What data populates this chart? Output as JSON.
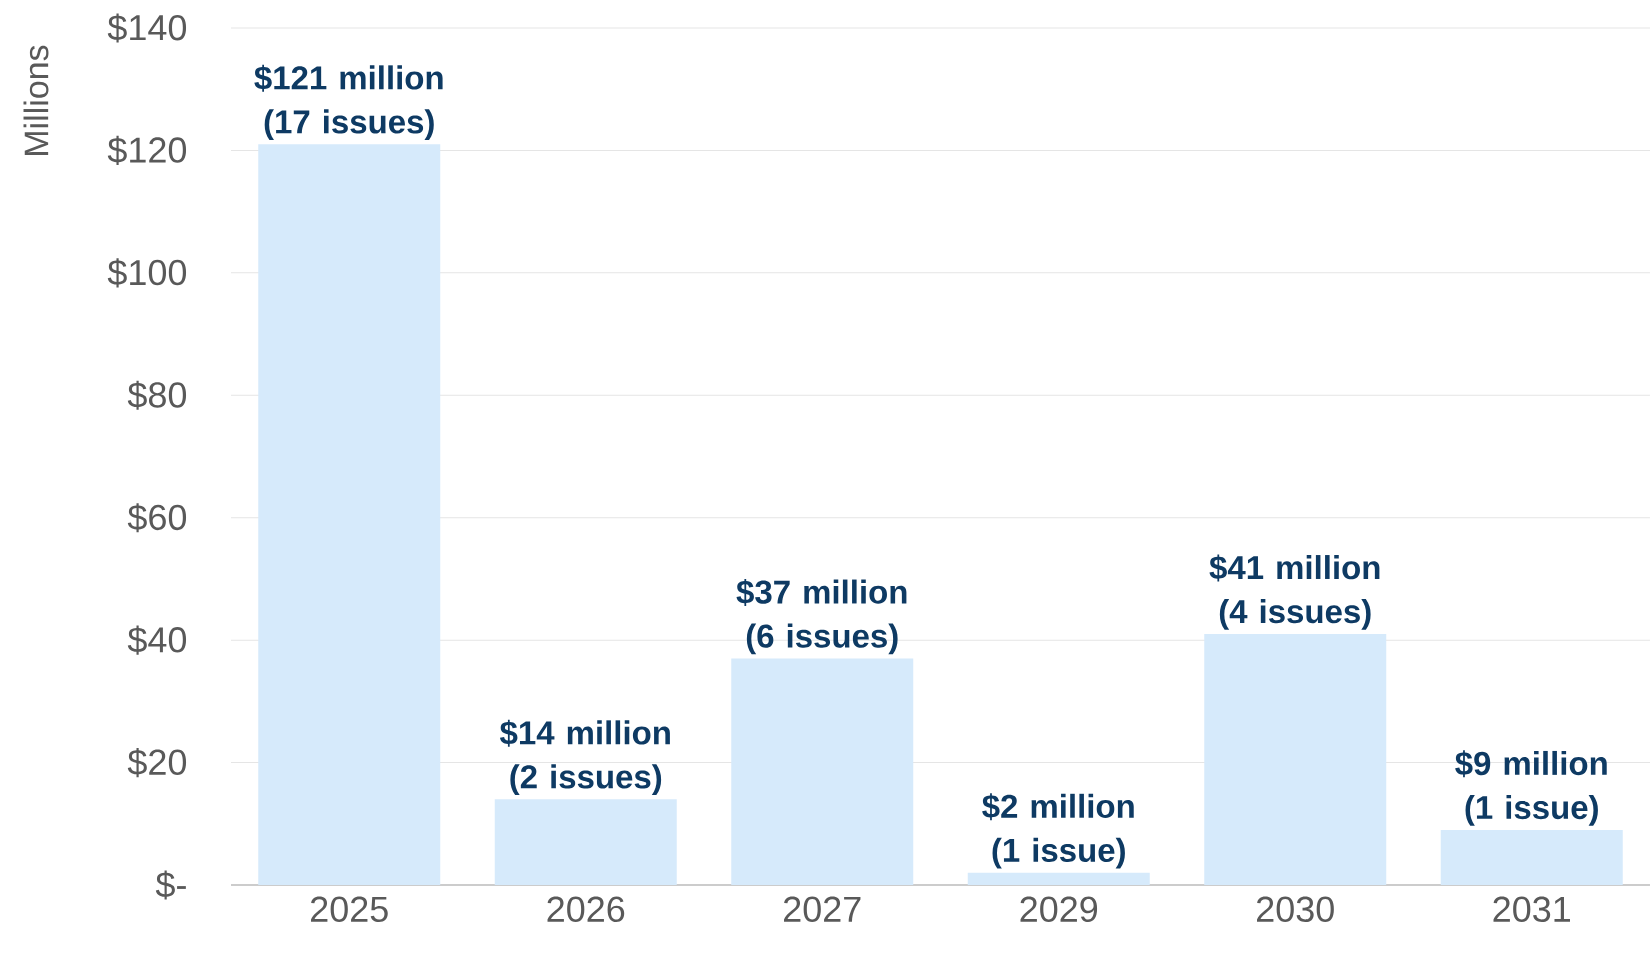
{
  "chart_data": {
    "type": "bar",
    "ylabel": "Millions",
    "categories": [
      "2025",
      "2026",
      "2027",
      "2029",
      "2030",
      "2031"
    ],
    "values": [
      121,
      14,
      37,
      2,
      41,
      9
    ],
    "color": "#d6eafb",
    "annotations": [
      {
        "text": "$121 million (17 issues)",
        "x": "2025",
        "y": 121
      },
      {
        "text": "$14 million (2 issues)",
        "x": "2026",
        "y": 14
      },
      {
        "text": "$37 million (6 issues)",
        "x": "2027",
        "y": 37
      },
      {
        "text": "$2 million (1 issue)",
        "x": "2029",
        "y": 2
      },
      {
        "text": "$41 million (4 issues)",
        "x": "2030",
        "y": 41
      },
      {
        "text": "$9 million (1 issue)",
        "x": "2031",
        "y": 9
      }
    ],
    "ylim": [
      0,
      140
    ],
    "yticks": [
      {
        "value": 0,
        "label": "$-"
      },
      {
        "value": 20,
        "label": "$20"
      },
      {
        "value": 40,
        "label": "$40"
      },
      {
        "value": 60,
        "label": "$60"
      },
      {
        "value": 80,
        "label": "$80"
      },
      {
        "value": 100,
        "label": "$100"
      },
      {
        "value": 120,
        "label": "$120"
      },
      {
        "value": 140,
        "label": "$140"
      }
    ],
    "grid": "y"
  }
}
